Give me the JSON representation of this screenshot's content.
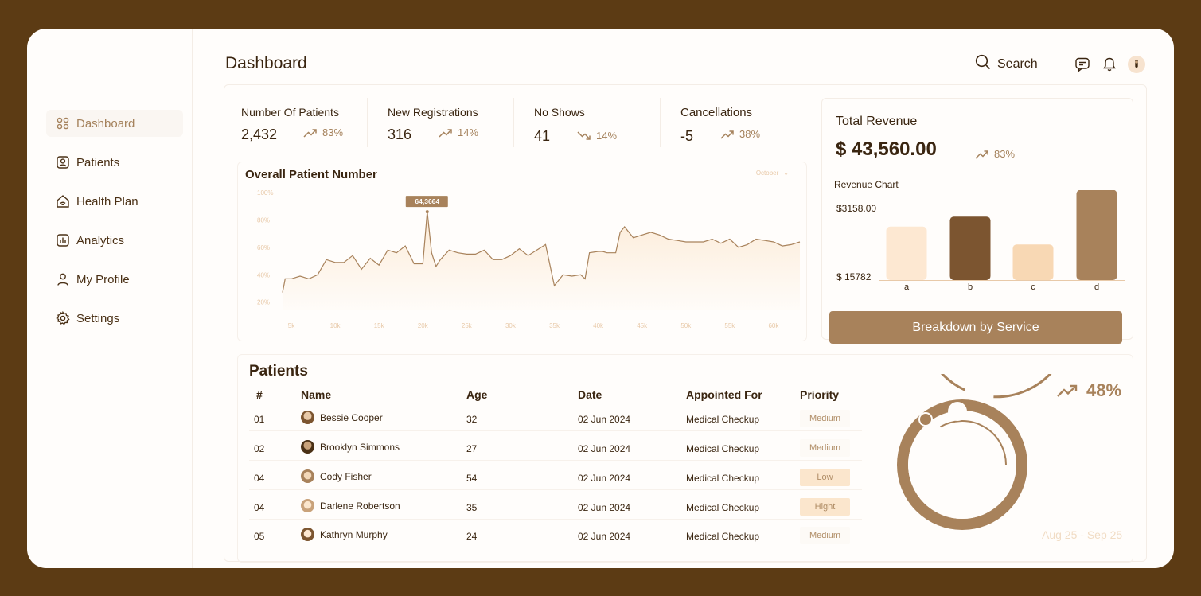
{
  "sidebar": {
    "items": [
      {
        "label": "Dashboard",
        "icon": "grid-icon",
        "active": true
      },
      {
        "label": "Patients",
        "icon": "patient-badge-icon"
      },
      {
        "label": "Health Plan",
        "icon": "home-wifi-icon"
      },
      {
        "label": "Analytics",
        "icon": "bar-chart-icon"
      },
      {
        "label": "My Profile",
        "icon": "user-icon"
      },
      {
        "label": "Settings",
        "icon": "gear-icon"
      }
    ]
  },
  "header": {
    "title": "Dashboard",
    "search_label": "Search",
    "icons": [
      "search-icon",
      "message-icon",
      "bell-icon",
      "avatar"
    ]
  },
  "stats": [
    {
      "label": "Number Of Patients",
      "value": "2,432",
      "change": "83%",
      "direction": "up"
    },
    {
      "label": "New Registrations",
      "value": "316",
      "change": "14%",
      "direction": "up"
    },
    {
      "label": "No Shows",
      "value": "41",
      "change": "14%",
      "direction": "down"
    },
    {
      "label": "Cancellations",
      "value": "-5",
      "change": "38%",
      "direction": "up"
    }
  ],
  "patient_chart": {
    "title": "Overall Patient Number",
    "period": "October",
    "tooltip": "64,3664"
  },
  "revenue": {
    "title": "Total Revenue",
    "value": "$ 43,560.00",
    "change": "83%",
    "chart_label": "Revenue Chart",
    "button_label": "Breakdown by Service"
  },
  "chart_data": [
    {
      "type": "area",
      "title": "Overall Patient Number",
      "xlabel": "",
      "ylabel": "",
      "x_ticks": [
        "5k",
        "10k",
        "15k",
        "20k",
        "25k",
        "30k",
        "35k",
        "40k",
        "45k",
        "50k",
        "55k",
        "60k"
      ],
      "y_ticks": [
        "100%",
        "80%",
        "60%",
        "40%",
        "20%"
      ],
      "xlim": [
        4,
        63
      ],
      "ylim": [
        14,
        100
      ],
      "grid": false,
      "x": [
        4,
        4.3,
        5,
        6,
        7,
        8,
        9,
        10,
        11,
        12,
        12.5,
        13,
        14,
        15,
        16,
        17,
        18,
        19,
        20,
        20.5,
        21,
        21.5,
        22,
        23,
        24,
        25,
        26,
        27,
        28,
        29,
        30,
        31,
        32,
        33,
        34,
        35,
        36,
        37,
        38,
        38.5,
        39,
        40,
        40.5,
        41,
        42,
        42.5,
        43,
        44,
        45,
        46,
        47,
        48,
        49,
        50,
        51,
        52,
        53,
        54,
        55,
        56,
        57,
        58,
        59,
        60,
        61,
        62,
        63
      ],
      "y": [
        27,
        37,
        37,
        39,
        37,
        40,
        51,
        49,
        49,
        54,
        49,
        44,
        52,
        47,
        58,
        56,
        61,
        48,
        48,
        86,
        56,
        46,
        51,
        58,
        56,
        55,
        55,
        58,
        51,
        51,
        54,
        59,
        54,
        58,
        62,
        32,
        40,
        39,
        40,
        37,
        56,
        57,
        57,
        56,
        56,
        71,
        75,
        67,
        69,
        71,
        69,
        66,
        65,
        64,
        64,
        64,
        66,
        63,
        66,
        60,
        62,
        66,
        65,
        64,
        61,
        62,
        64
      ],
      "annotations": [
        {
          "x": 20.5,
          "y": 86,
          "text": "64,3664"
        }
      ]
    },
    {
      "type": "bar",
      "title": "Revenue Chart",
      "categories": [
        "a",
        "b",
        "c",
        "d"
      ],
      "values": [
        48,
        57,
        32,
        81
      ],
      "ylim": [
        0,
        100
      ],
      "y_labels": [
        "$3158.00",
        "$ 15782"
      ],
      "colors": [
        "#fde8d2",
        "#7c5530",
        "#f8d8b4",
        "#a8825b"
      ]
    }
  ],
  "patients": {
    "title": "Patients",
    "columns": [
      "#",
      "Name",
      "Age",
      "Date",
      "Appointed For",
      "Priority"
    ],
    "rows": [
      {
        "id": "01",
        "name": "Bessie Cooper",
        "age": "32",
        "date": "02 Jun 2024",
        "appointed_for": "Medical Checkup",
        "priority": "Medium"
      },
      {
        "id": "02",
        "name": "Brooklyn Simmons",
        "age": "27",
        "date": "02 Jun 2024",
        "appointed_for": "Medical Checkup",
        "priority": "Medium"
      },
      {
        "id": "04",
        "name": "Cody Fisher",
        "age": "54",
        "date": "02 Jun 2024",
        "appointed_for": "Medical Checkup",
        "priority": "Low"
      },
      {
        "id": "04",
        "name": "Darlene Robertson",
        "age": "35",
        "date": "02 Jun 2024",
        "appointed_for": "Medical Checkup",
        "priority": "Hight"
      },
      {
        "id": "05",
        "name": "Kathryn Murphy",
        "age": "24",
        "date": "02 Jun 2024",
        "appointed_for": "Medical Checkup",
        "priority": "Medium"
      }
    ]
  },
  "donut": {
    "percent": "48%",
    "value_fraction": 0.48,
    "range": "Aug 25 - Sep 25"
  },
  "colors": {
    "accent": "#a8825b",
    "dark_brown": "#7c5530",
    "border": "#5c3b14",
    "light": "#fde8d2"
  }
}
